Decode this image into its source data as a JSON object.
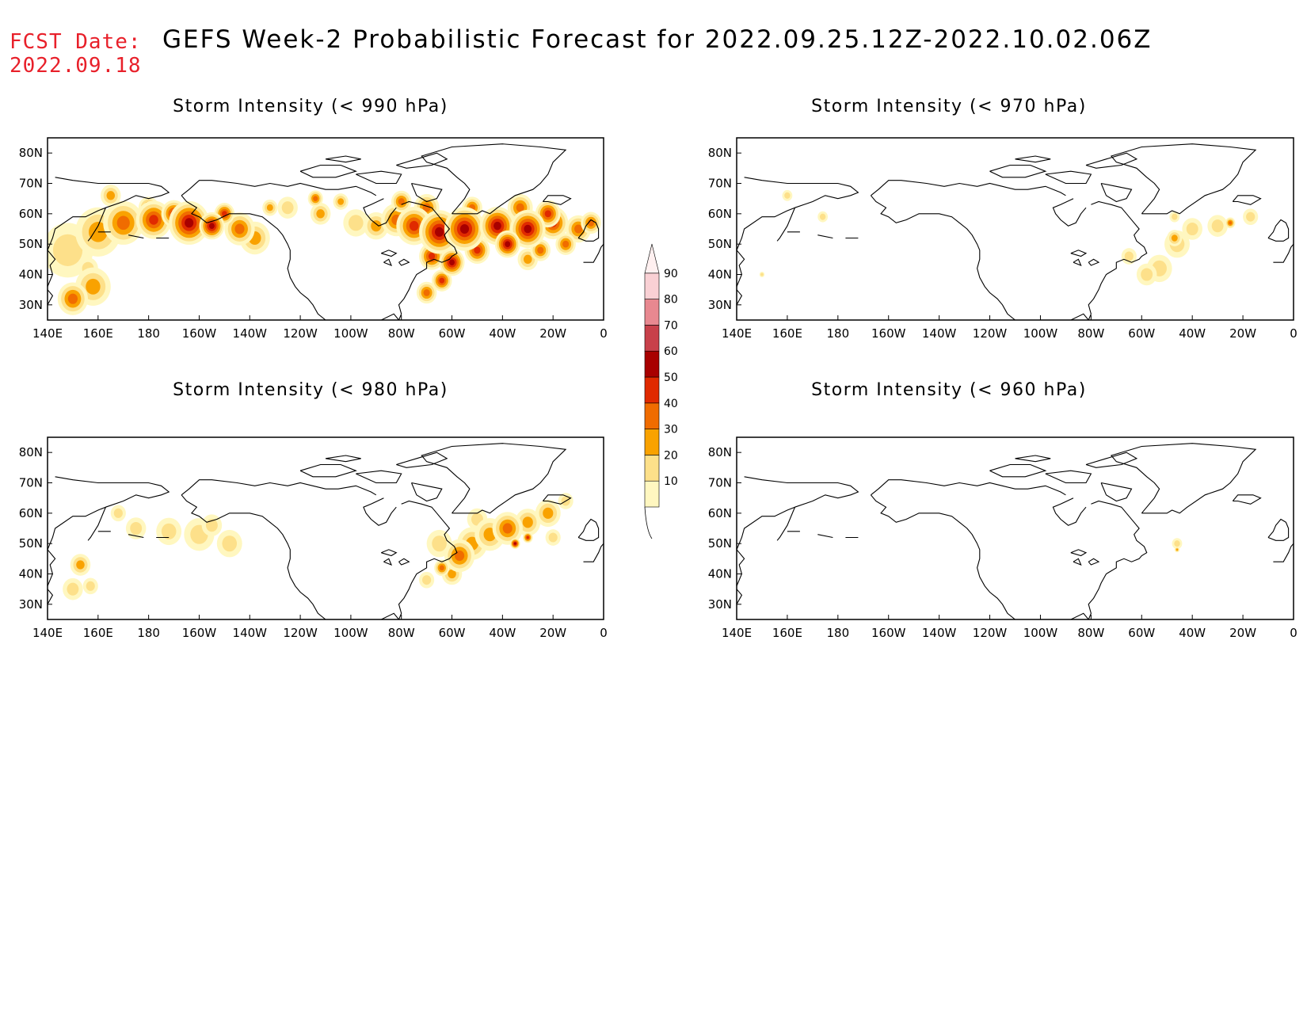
{
  "header": {
    "fcst_label": "FCST Date:",
    "fcst_date": "2022.09.18",
    "title": "GEFS Week-2 Probabilistic Forecast for 2022.09.25.12Z-2022.10.02.06Z"
  },
  "panels": [
    {
      "title": "Storm Intensity (< 990 hPa)"
    },
    {
      "title": "Storm Intensity (< 970 hPa)"
    },
    {
      "title": "Storm Intensity (< 980 hPa)"
    },
    {
      "title": "Storm Intensity (< 960 hPa)"
    }
  ],
  "axes": {
    "lon_labels": [
      "140E",
      "160E",
      "180",
      "160W",
      "140W",
      "120W",
      "100W",
      "80W",
      "60W",
      "40W",
      "20W",
      "0"
    ],
    "lat_labels": [
      "80N",
      "70N",
      "60N",
      "50N",
      "40N",
      "30N"
    ],
    "lon_range": [
      140,
      360
    ],
    "lat_range": [
      25,
      85
    ]
  },
  "colorbar": {
    "levels": [
      10,
      20,
      30,
      40,
      50,
      60,
      70,
      80,
      90
    ],
    "level_labels": [
      "10",
      "20",
      "30",
      "40",
      "50",
      "60",
      "70",
      "80",
      "90"
    ],
    "colors": [
      "#fff7c0",
      "#fde08a",
      "#f9a200",
      "#f06c00",
      "#e02a00",
      "#a80000",
      "#c8404a",
      "#e88890",
      "#f9d0d4",
      "#fff0f0"
    ]
  }
}
